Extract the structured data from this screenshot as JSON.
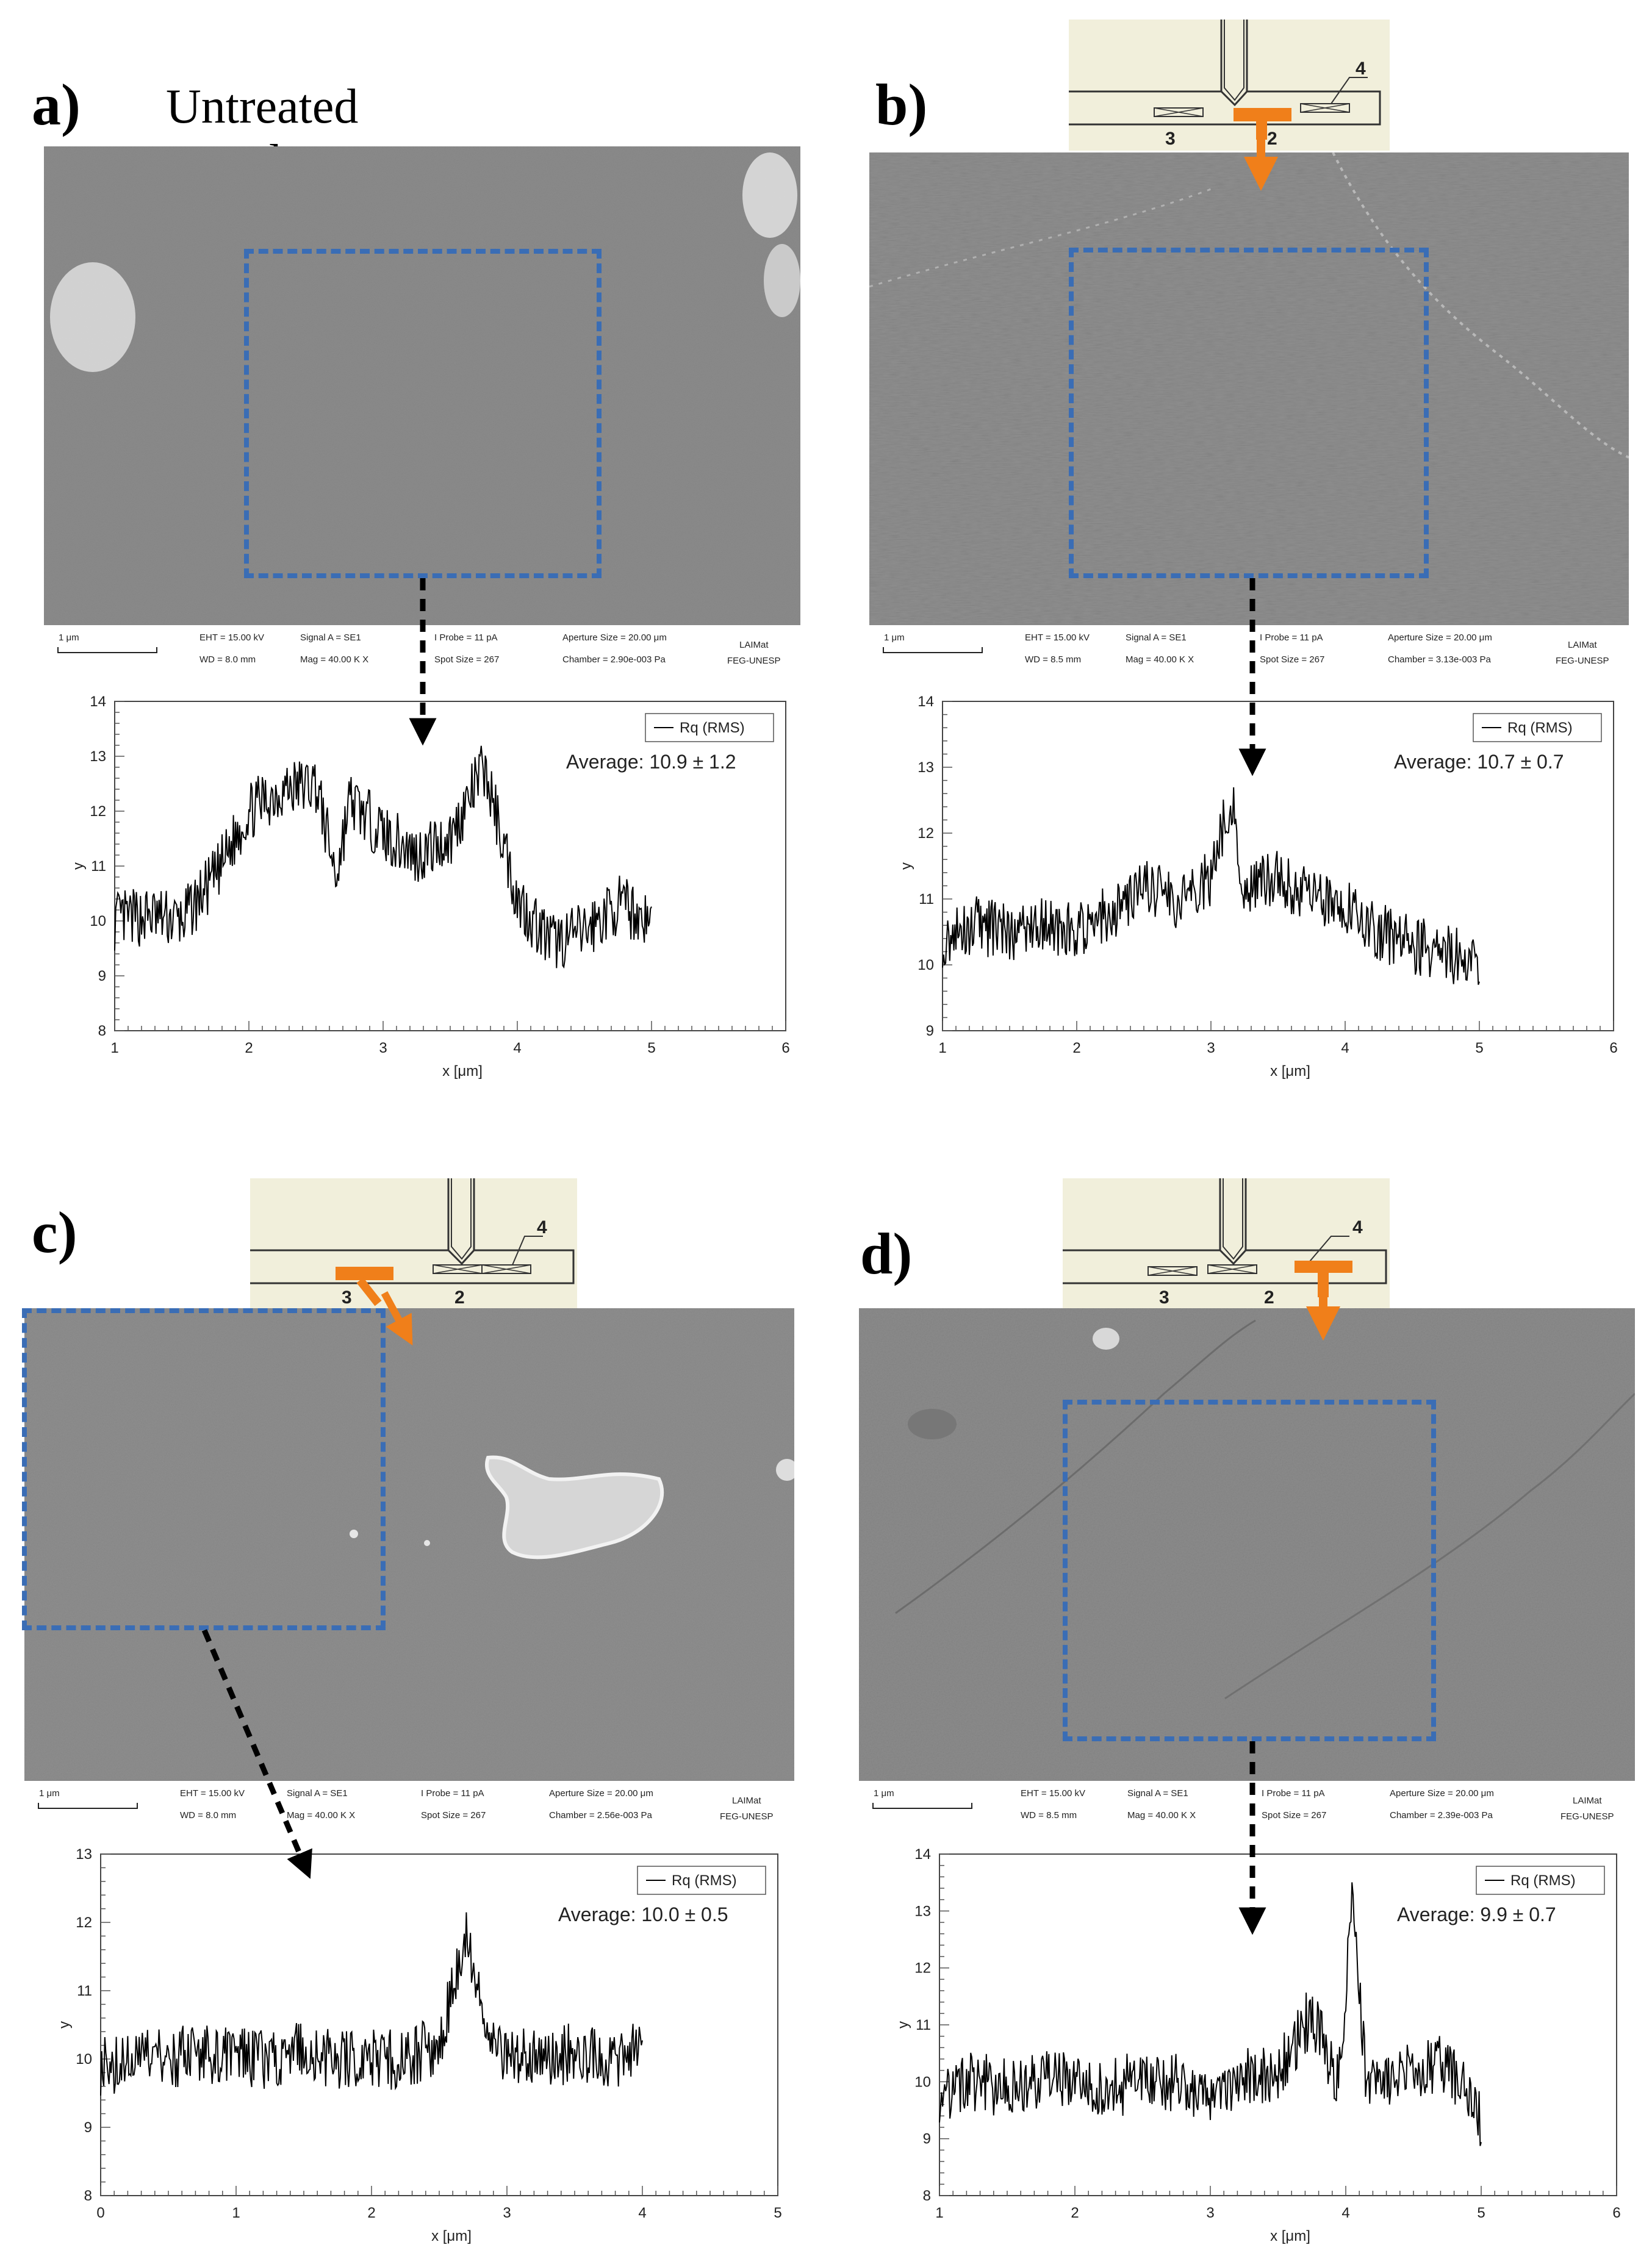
{
  "panels": [
    {
      "id": "a",
      "label": "a)",
      "title": "Untreated sample",
      "sem": {
        "scale": "1 μm",
        "eht": "EHT = 15.00 kV",
        "wd": "WD = 8.0 mm",
        "signal": "Signal A = SE1",
        "mag": "Mag = 40.00 K X",
        "probe": "I Probe = 11 pA",
        "spot": "Spot Size = 267",
        "aperture": "Aperture Size = 20.00 μm",
        "chamber": "Chamber = 2.90e-003 Pa",
        "lab1": "LAIMat",
        "lab2": "FEG-UNESP"
      },
      "average": "Average: 10.9 ± 1.2"
    },
    {
      "id": "b",
      "label": "b)",
      "title": "",
      "sem": {
        "scale": "1 μm",
        "eht": "EHT = 15.00 kV",
        "wd": "WD = 8.5 mm",
        "signal": "Signal A = SE1",
        "mag": "Mag = 40.00 K X",
        "probe": "I Probe = 11 pA",
        "spot": "Spot Size = 267",
        "aperture": "Aperture Size = 20.00 μm",
        "chamber": "Chamber = 3.13e-003 Pa",
        "lab1": "LAIMat",
        "lab2": "FEG-UNESP"
      },
      "average": "Average: 10.7 ± 0.7"
    },
    {
      "id": "c",
      "label": "c)",
      "title": "",
      "sem": {
        "scale": "1 μm",
        "eht": "EHT = 15.00 kV",
        "wd": "WD = 8.0 mm",
        "signal": "Signal A = SE1",
        "mag": "Mag = 40.00 K X",
        "probe": "I Probe = 11 pA",
        "spot": "Spot Size = 267",
        "aperture": "Aperture Size = 20.00 μm",
        "chamber": "Chamber = 2.56e-003 Pa",
        "lab1": "LAIMat",
        "lab2": "FEG-UNESP"
      },
      "average": "Average: 10.0 ± 0.5"
    },
    {
      "id": "d",
      "label": "d)",
      "title": "",
      "sem": {
        "scale": "1 μm",
        "eht": "EHT = 15.00 kV",
        "wd": "WD = 8.5 mm",
        "signal": "Signal A = SE1",
        "mag": "Mag = 40.00 K X",
        "probe": "I Probe = 11 pA",
        "spot": "Spot Size = 267",
        "aperture": "Aperture Size = 20.00 μm",
        "chamber": "Chamber = 2.39e-003 Pa",
        "lab1": "LAIMat",
        "lab2": "FEG-UNESP"
      },
      "average": "Average: 9.9 ± 0.7"
    }
  ],
  "insets": {
    "labels": [
      "2",
      "3",
      "4"
    ]
  },
  "colors": {
    "roi": "#3a6db5",
    "nozzle_marker": "#f07f1a",
    "sem_gray": "#8a8a8a",
    "trace": "#000000"
  },
  "chart_data": [
    {
      "panel": "a",
      "type": "line",
      "xlabel": "x [μm]",
      "ylabel": "y",
      "xlim": [
        1,
        6
      ],
      "ylim": [
        8,
        14
      ],
      "xticks": [
        "1",
        "2",
        "3",
        "4",
        "5",
        "6"
      ],
      "yticks": [
        "8",
        "9",
        "10",
        "11",
        "12",
        "13",
        "14"
      ],
      "series": [
        {
          "name": "Rq (RMS)",
          "x": [
            1.0,
            1.25,
            1.5,
            1.75,
            2.0,
            2.25,
            2.5,
            2.65,
            2.75,
            3.0,
            3.25,
            3.5,
            3.75,
            3.9,
            4.0,
            4.25,
            4.5,
            4.75,
            5.0
          ],
          "y": [
            10.0,
            10.1,
            10.0,
            10.8,
            12.0,
            12.4,
            12.5,
            10.8,
            12.2,
            11.6,
            11.2,
            11.5,
            12.8,
            11.4,
            10.4,
            9.6,
            9.8,
            10.3,
            10.0
          ]
        }
      ]
    },
    {
      "panel": "b",
      "type": "line",
      "xlabel": "x [μm]",
      "ylabel": "y",
      "xlim": [
        1,
        6
      ],
      "ylim": [
        9,
        14
      ],
      "xticks": [
        "1",
        "2",
        "3",
        "4",
        "5",
        "6"
      ],
      "yticks": [
        "9",
        "10",
        "11",
        "12",
        "13",
        "14"
      ],
      "series": [
        {
          "name": "Rq (RMS)",
          "x": [
            1.0,
            1.25,
            1.5,
            1.75,
            2.0,
            2.25,
            2.5,
            2.75,
            3.0,
            3.15,
            3.25,
            3.5,
            3.75,
            4.0,
            4.25,
            4.5,
            4.75,
            5.0
          ],
          "y": [
            10.4,
            10.6,
            10.5,
            10.6,
            10.5,
            10.8,
            11.2,
            11.0,
            11.3,
            12.6,
            11.2,
            11.3,
            11.0,
            10.9,
            10.5,
            10.3,
            10.2,
            10.0
          ]
        }
      ]
    },
    {
      "panel": "c",
      "type": "line",
      "xlabel": "x [μm]",
      "ylabel": "y",
      "xlim": [
        0,
        5
      ],
      "ylim": [
        8,
        13
      ],
      "xticks": [
        "0",
        "1",
        "2",
        "3",
        "4",
        "5"
      ],
      "yticks": [
        "8",
        "9",
        "10",
        "11",
        "12",
        "13"
      ],
      "series": [
        {
          "name": "Rq (RMS)",
          "x": [
            0.0,
            0.25,
            0.5,
            0.75,
            1.0,
            1.25,
            1.5,
            1.75,
            2.0,
            2.25,
            2.5,
            2.7,
            2.9,
            3.0,
            3.25,
            3.5,
            3.75,
            4.0
          ],
          "y": [
            9.9,
            10.0,
            10.0,
            10.1,
            10.0,
            10.0,
            10.1,
            10.0,
            10.0,
            10.0,
            10.2,
            11.8,
            10.2,
            10.1,
            10.0,
            10.1,
            10.0,
            10.1
          ]
        }
      ]
    },
    {
      "panel": "d",
      "type": "line",
      "xlabel": "x [μm]",
      "ylabel": "y",
      "xlim": [
        1,
        6
      ],
      "ylim": [
        8,
        14
      ],
      "xticks": [
        "1",
        "2",
        "3",
        "4",
        "5",
        "6"
      ],
      "yticks": [
        "8",
        "9",
        "10",
        "11",
        "12",
        "13",
        "14"
      ],
      "series": [
        {
          "name": "Rq (RMS)",
          "x": [
            1.0,
            1.25,
            1.5,
            1.75,
            2.0,
            2.25,
            2.5,
            2.75,
            3.0,
            3.25,
            3.5,
            3.75,
            3.95,
            4.05,
            4.15,
            4.25,
            4.5,
            4.75,
            5.0
          ],
          "y": [
            9.8,
            10.0,
            9.9,
            10.0,
            10.0,
            9.9,
            10.0,
            10.0,
            9.8,
            10.1,
            10.2,
            11.2,
            10.0,
            13.3,
            10.0,
            9.8,
            10.2,
            10.3,
            9.3
          ]
        }
      ]
    }
  ]
}
